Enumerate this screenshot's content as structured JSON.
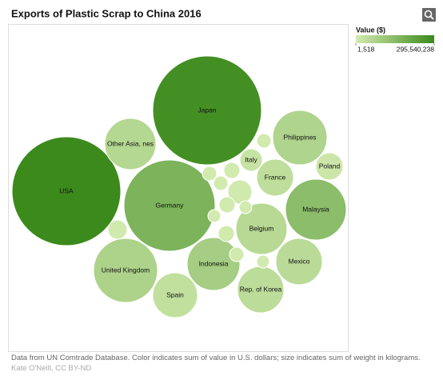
{
  "chart_data": {
    "type": "packed-bubble",
    "title": "Exports of Plastic Scrap to China 2016",
    "legend_title": "Value ($)",
    "colorlim": [
      1518,
      295540238
    ],
    "colorticks": [
      {
        "value": 1518,
        "label": "1,518"
      },
      {
        "value": 295540238,
        "label": "295,540,238"
      }
    ],
    "colors": [
      "#d3ebb0",
      "#3c8a1c"
    ],
    "categories": [
      "Japan",
      "USA",
      "Germany",
      "Other Asia, nes",
      "Philippines",
      "Italy",
      "Poland",
      "France",
      "Malaysia",
      "Belgium",
      "United Kingdom",
      "Indonesia",
      "Mexico",
      "Rep. of Korea",
      "Spain",
      null,
      null,
      null,
      null,
      null,
      null,
      null,
      null,
      null,
      null,
      null,
      null
    ],
    "values": [
      280000000,
      295540238,
      170000000,
      60000000,
      70000000,
      25000000,
      15000000,
      40000000,
      140000000,
      55000000,
      75000000,
      90000000,
      50000000,
      45000000,
      35000000,
      5000000,
      4000000,
      3000000,
      3500000,
      6000000,
      4000000,
      3000000,
      2500000,
      2500000,
      4500000,
      2000000,
      3000000
    ],
    "sizes": [
      462400000,
      462400000,
      324900000,
      102400000,
      115600000,
      19600000,
      28900000,
      52900000,
      144400000,
      102400000,
      160000000,
      108900000,
      84100000,
      84100000,
      78400000,
      22500000,
      10000000,
      8100000,
      8100000,
      14400000,
      10000000,
      8100000,
      6400000,
      6400000,
      10000000,
      6400000,
      8100000
    ],
    "footnote": "Data from UN Comtrade Database. Color indicates sum of value in U.S. dollars; size indicates sum of weight in kilograms.",
    "credit": "Kate O'Neill, CC BY-ND"
  }
}
